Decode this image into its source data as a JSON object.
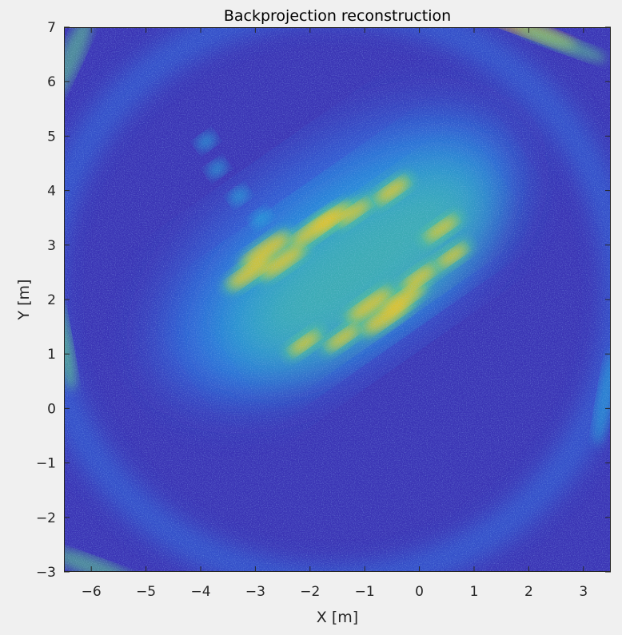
{
  "chart_data": {
    "type": "heatmap",
    "title": "Backprojection reconstruction",
    "xlabel": "X [m]",
    "ylabel": "Y [m]",
    "xlim": [
      -6.5,
      3.5
    ],
    "ylim": [
      -3,
      7
    ],
    "x_ticks": [
      -6,
      -5,
      -4,
      -3,
      -2,
      -1,
      0,
      1,
      2,
      3
    ],
    "y_ticks": [
      -3,
      -2,
      -1,
      0,
      1,
      2,
      3,
      4,
      5,
      6,
      7
    ],
    "colormap": "parula",
    "grid": false,
    "colors": {
      "low": "#3b35b5",
      "mid_low": "#2f6fe0",
      "mid": "#24a8d8",
      "mid_high": "#5cc58a",
      "high": "#e8c22c"
    }
  }
}
